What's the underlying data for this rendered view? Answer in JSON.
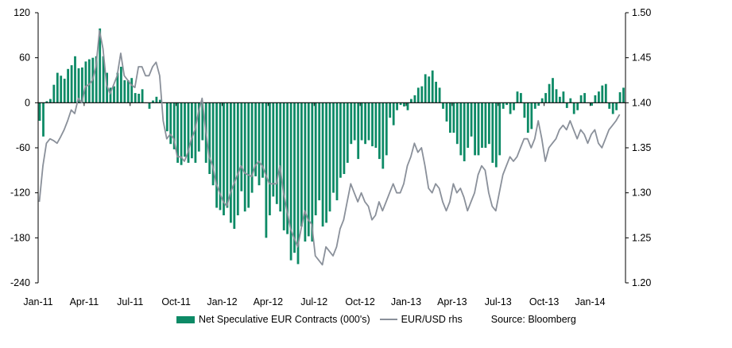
{
  "chart_data": {
    "type": "bar+line",
    "title": "",
    "source": "Source: Bloomberg",
    "x_tick_labels": [
      "Jan-11",
      "Apr-11",
      "Jul-11",
      "Oct-11",
      "Jan-12",
      "Apr-12",
      "Jul-12",
      "Oct-12",
      "Jan-13",
      "Apr-13",
      "Jul-13",
      "Oct-13",
      "Jan-14"
    ],
    "left_axis": {
      "label": "Net Speculative EUR Contracts (000's)",
      "ylim": [
        -240,
        120
      ],
      "ticks": [
        "120",
        "60",
        "0",
        "-60",
        "-120",
        "-180",
        "-240"
      ]
    },
    "right_axis": {
      "label": "EUR/USD rhs",
      "ylim": [
        1.2,
        1.5
      ],
      "ticks": [
        "1.50",
        "1.45",
        "1.40",
        "1.35",
        "1.30",
        "1.25",
        "1.20"
      ]
    },
    "colors": {
      "bars": "#0d8a66",
      "line": "#8a909a",
      "axis": "#000000"
    },
    "series": [
      {
        "name": "Net Speculative EUR Contracts (000's)",
        "kind": "bar",
        "frequency": "weekly",
        "start": "Jan-11",
        "values": [
          -24,
          -45,
          2,
          5,
          24,
          40,
          36,
          32,
          45,
          50,
          62,
          46,
          47,
          55,
          58,
          60,
          62,
          99,
          62,
          40,
          20,
          22,
          40,
          48,
          30,
          30,
          33,
          13,
          12,
          18,
          0,
          -8,
          3,
          8,
          4,
          0,
          -38,
          -55,
          -62,
          -80,
          -83,
          -72,
          -80,
          -74,
          -80,
          -65,
          -50,
          -80,
          -95,
          -110,
          -140,
          -143,
          -150,
          -140,
          -160,
          -168,
          -150,
          -118,
          -145,
          -140,
          -120,
          -98,
          -110,
          -100,
          -180,
          -150,
          -125,
          -135,
          -145,
          -170,
          -175,
          -210,
          -200,
          -215,
          -165,
          -185,
          -178,
          -185,
          -150,
          -130,
          -165,
          -160,
          -145,
          -120,
          -130,
          -100,
          -95,
          -80,
          -55,
          -50,
          -75,
          -50,
          -55,
          -50,
          -58,
          -60,
          -75,
          -88,
          -70,
          -20,
          -30,
          -10,
          -3,
          -5,
          -10,
          5,
          10,
          20,
          22,
          38,
          35,
          43,
          28,
          20,
          -8,
          -25,
          -40,
          -40,
          -55,
          -70,
          -78,
          -60,
          -45,
          -70,
          -70,
          -60,
          -60,
          -55,
          -80,
          -86,
          -70,
          -8,
          -3,
          -15,
          -10,
          15,
          13,
          -20,
          -40,
          -35,
          -8,
          -4,
          6,
          13,
          25,
          33,
          18,
          8,
          15,
          -7,
          6,
          -15,
          -10,
          10,
          13,
          0,
          -4,
          10,
          15,
          23,
          25,
          -8,
          -15,
          -10,
          14,
          20,
          18,
          20,
          24,
          -5,
          -6,
          3
        ],
        "note": "values approximated from image; rendered count limited to plot width"
      },
      {
        "name": "EUR/USD rhs",
        "kind": "line",
        "frequency": "weekly",
        "start": "Jan-11",
        "values": [
          1.29,
          1.33,
          1.355,
          1.36,
          1.358,
          1.355,
          1.362,
          1.37,
          1.38,
          1.392,
          1.388,
          1.405,
          1.4,
          1.418,
          1.42,
          1.425,
          1.44,
          1.48,
          1.46,
          1.42,
          1.41,
          1.42,
          1.43,
          1.455,
          1.43,
          1.425,
          1.42,
          1.417,
          1.44,
          1.44,
          1.43,
          1.43,
          1.44,
          1.445,
          1.43,
          1.38,
          1.36,
          1.365,
          1.36,
          1.34,
          1.34,
          1.335,
          1.345,
          1.36,
          1.37,
          1.39,
          1.405,
          1.37,
          1.34,
          1.33,
          1.31,
          1.3,
          1.29,
          1.285,
          1.3,
          1.31,
          1.32,
          1.33,
          1.322,
          1.32,
          1.318,
          1.33,
          1.335,
          1.33,
          1.32,
          1.31,
          1.31,
          1.31,
          1.33,
          1.3,
          1.28,
          1.26,
          1.25,
          1.24,
          1.26,
          1.28,
          1.27,
          1.265,
          1.23,
          1.225,
          1.22,
          1.24,
          1.235,
          1.23,
          1.24,
          1.26,
          1.27,
          1.29,
          1.31,
          1.3,
          1.29,
          1.3,
          1.29,
          1.285,
          1.27,
          1.275,
          1.29,
          1.28,
          1.29,
          1.3,
          1.31,
          1.3,
          1.3,
          1.31,
          1.33,
          1.34,
          1.355,
          1.345,
          1.35,
          1.33,
          1.305,
          1.3,
          1.31,
          1.305,
          1.29,
          1.28,
          1.29,
          1.31,
          1.3,
          1.305,
          1.295,
          1.28,
          1.29,
          1.3,
          1.32,
          1.33,
          1.325,
          1.3,
          1.285,
          1.28,
          1.3,
          1.32,
          1.33,
          1.34,
          1.335,
          1.34,
          1.35,
          1.36,
          1.36,
          1.35,
          1.36,
          1.38,
          1.36,
          1.335,
          1.35,
          1.355,
          1.36,
          1.37,
          1.375,
          1.37,
          1.38,
          1.37,
          1.36,
          1.37,
          1.365,
          1.355,
          1.365,
          1.37,
          1.355,
          1.35,
          1.36,
          1.37,
          1.375,
          1.38,
          1.387
        ]
      }
    ]
  },
  "legend": {
    "bar_label": "Net Speculative EUR Contracts (000's)",
    "line_label": "EUR/USD rhs",
    "source": "Source: Bloomberg"
  }
}
